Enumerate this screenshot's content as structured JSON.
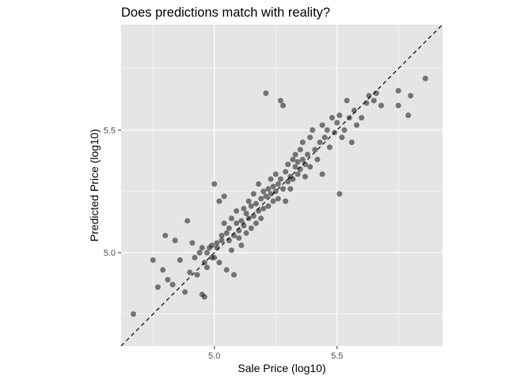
{
  "chart_data": {
    "type": "scatter",
    "title": "Does predictions match with reality?",
    "xlabel": "Sale Price (log10)",
    "ylabel": "Predicted Price (log10)",
    "xlim": [
      4.62,
      5.93
    ],
    "ylim": [
      4.62,
      5.93
    ],
    "x_ticks": [
      5.0,
      5.5
    ],
    "y_ticks": [
      5.0,
      5.5
    ],
    "x_tick_labels": [
      "5.0",
      "5.5"
    ],
    "y_tick_labels": [
      "5.0",
      "5.5"
    ],
    "grid": true,
    "panel_background": "#e5e5e5",
    "grid_color": "#ffffff",
    "point_color": "#000000",
    "point_alpha": 0.5,
    "reference_line": {
      "style": "dashed",
      "color": "#000000",
      "slope": 1,
      "intercept": 0
    },
    "points": [
      [
        4.67,
        4.75
      ],
      [
        4.75,
        4.97
      ],
      [
        4.77,
        4.86
      ],
      [
        4.79,
        4.93
      ],
      [
        4.8,
        5.07
      ],
      [
        4.81,
        4.89
      ],
      [
        4.83,
        4.87
      ],
      [
        4.84,
        5.05
      ],
      [
        4.86,
        4.97
      ],
      [
        4.88,
        4.84
      ],
      [
        4.89,
        5.13
      ],
      [
        4.9,
        4.92
      ],
      [
        4.91,
        5.04
      ],
      [
        4.92,
        4.98
      ],
      [
        4.93,
        4.91
      ],
      [
        4.94,
        5.0
      ],
      [
        4.95,
        4.83
      ],
      [
        4.95,
        5.02
      ],
      [
        4.96,
        4.82
      ],
      [
        4.96,
        4.96
      ],
      [
        4.97,
        5.0
      ],
      [
        4.97,
        4.94
      ],
      [
        4.98,
        5.02
      ],
      [
        4.99,
        4.98
      ],
      [
        4.99,
        5.03
      ],
      [
        5.0,
        5.28
      ],
      [
        5.0,
        4.98
      ],
      [
        5.01,
        5.02
      ],
      [
        5.01,
        5.04
      ],
      [
        5.02,
        4.96
      ],
      [
        5.02,
        5.21
      ],
      [
        5.03,
        5.07
      ],
      [
        5.03,
        5.05
      ],
      [
        5.04,
        5.12
      ],
      [
        5.04,
        5.23
      ],
      [
        5.05,
        5.08
      ],
      [
        5.05,
        4.93
      ],
      [
        5.06,
        5.1
      ],
      [
        5.06,
        5.05
      ],
      [
        5.07,
        5.14
      ],
      [
        5.07,
        5.01
      ],
      [
        5.08,
        5.07
      ],
      [
        5.08,
        4.91
      ],
      [
        5.09,
        5.12
      ],
      [
        5.09,
        5.17
      ],
      [
        5.1,
        5.09
      ],
      [
        5.1,
        5.06
      ],
      [
        5.11,
        5.13
      ],
      [
        5.11,
        5.03
      ],
      [
        5.12,
        5.18
      ],
      [
        5.12,
        5.11
      ],
      [
        5.13,
        5.16
      ],
      [
        5.13,
        5.08
      ],
      [
        5.14,
        5.14
      ],
      [
        5.14,
        5.21
      ],
      [
        5.15,
        5.1
      ],
      [
        5.15,
        5.19
      ],
      [
        5.16,
        5.15
      ],
      [
        5.16,
        5.24
      ],
      [
        5.17,
        5.12
      ],
      [
        5.17,
        5.2
      ],
      [
        5.18,
        5.17
      ],
      [
        5.18,
        5.28
      ],
      [
        5.19,
        5.22
      ],
      [
        5.19,
        5.14
      ],
      [
        5.2,
        5.25
      ],
      [
        5.2,
        5.18
      ],
      [
        5.21,
        5.65
      ],
      [
        5.21,
        5.23
      ],
      [
        5.22,
        5.26
      ],
      [
        5.22,
        5.19
      ],
      [
        5.23,
        5.3
      ],
      [
        5.23,
        5.24
      ],
      [
        5.24,
        5.21
      ],
      [
        5.24,
        5.27
      ],
      [
        5.25,
        5.32
      ],
      [
        5.25,
        5.25
      ],
      [
        5.26,
        5.28
      ],
      [
        5.26,
        5.22
      ],
      [
        5.27,
        5.3
      ],
      [
        5.27,
        5.62
      ],
      [
        5.28,
        5.6
      ],
      [
        5.28,
        5.26
      ],
      [
        5.29,
        5.33
      ],
      [
        5.29,
        5.21
      ],
      [
        5.3,
        5.29
      ],
      [
        5.3,
        5.36
      ],
      [
        5.31,
        5.26
      ],
      [
        5.31,
        5.31
      ],
      [
        5.32,
        5.38
      ],
      [
        5.32,
        5.3
      ],
      [
        5.33,
        5.35
      ],
      [
        5.33,
        5.4
      ],
      [
        5.34,
        5.32
      ],
      [
        5.34,
        5.37
      ],
      [
        5.35,
        5.42
      ],
      [
        5.35,
        5.34
      ],
      [
        5.36,
        5.38
      ],
      [
        5.36,
        5.45
      ],
      [
        5.37,
        5.36
      ],
      [
        5.37,
        5.31
      ],
      [
        5.38,
        5.4
      ],
      [
        5.39,
        5.47
      ],
      [
        5.39,
        5.35
      ],
      [
        5.4,
        5.5
      ],
      [
        5.41,
        5.42
      ],
      [
        5.42,
        5.38
      ],
      [
        5.43,
        5.45
      ],
      [
        5.44,
        5.52
      ],
      [
        5.44,
        5.32
      ],
      [
        5.45,
        5.47
      ],
      [
        5.46,
        5.5
      ],
      [
        5.47,
        5.43
      ],
      [
        5.48,
        5.55
      ],
      [
        5.49,
        5.49
      ],
      [
        5.5,
        5.53
      ],
      [
        5.51,
        5.24
      ],
      [
        5.51,
        5.56
      ],
      [
        5.52,
        5.47
      ],
      [
        5.53,
        5.5
      ],
      [
        5.54,
        5.62
      ],
      [
        5.55,
        5.55
      ],
      [
        5.56,
        5.45
      ],
      [
        5.57,
        5.58
      ],
      [
        5.58,
        5.52
      ],
      [
        5.6,
        5.55
      ],
      [
        5.62,
        5.61
      ],
      [
        5.63,
        5.64
      ],
      [
        5.65,
        5.62
      ],
      [
        5.66,
        5.65
      ],
      [
        5.68,
        5.6
      ],
      [
        5.75,
        5.66
      ],
      [
        5.75,
        5.6
      ],
      [
        5.79,
        5.56
      ],
      [
        5.8,
        5.64
      ],
      [
        5.86,
        5.71
      ]
    ]
  }
}
